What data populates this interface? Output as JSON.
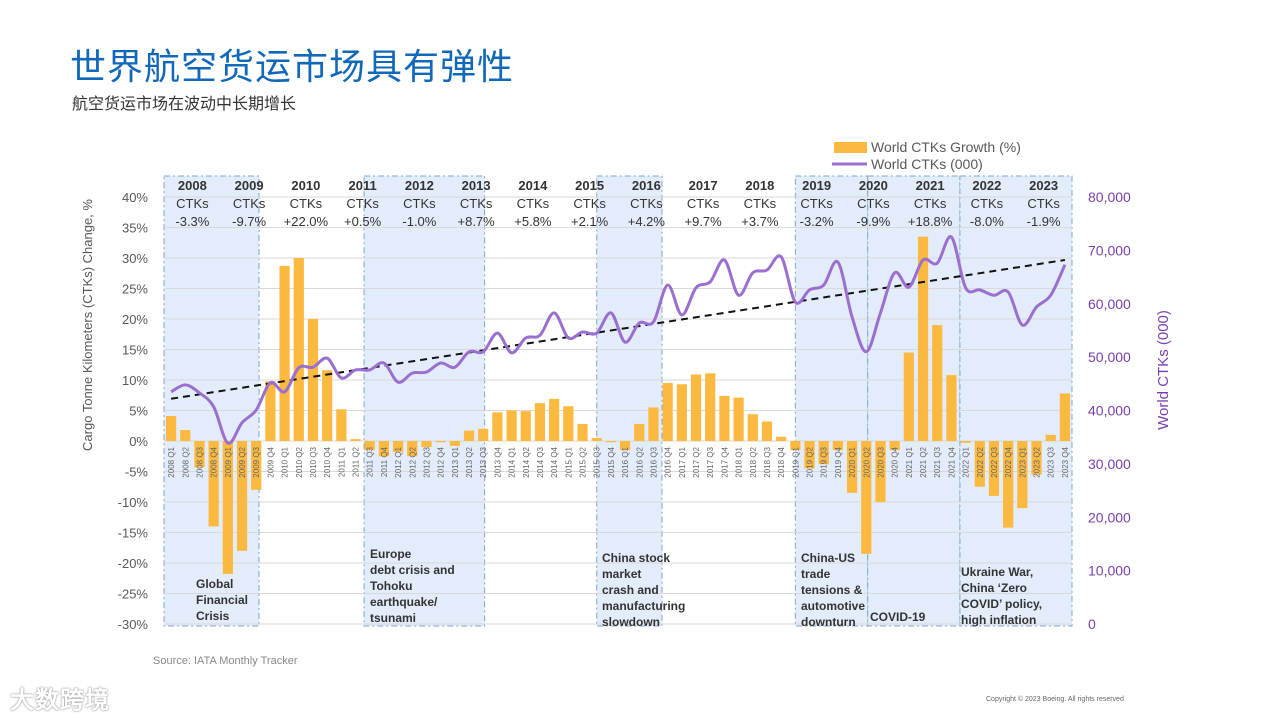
{
  "header": {
    "title": "世界航空货运市场具有弹性",
    "subtitle": "航空货运市场在波动中长期增长"
  },
  "footer": {
    "source": "Source: IATA Monthly Tracker",
    "copyright": "Copyright © 2023 Boeing. All rights reserved",
    "watermark": "1OO 大数跨境"
  },
  "colors": {
    "bar": "#fbb940",
    "line": "#9a6fcf",
    "trend": "#111111",
    "shade": "#e3ecfa",
    "shade_border": "#7ea7cc",
    "right_axis": "#7a3fae"
  },
  "chart_data": {
    "type": "bar+line",
    "legend": [
      "World CTKs Growth (%)",
      "World CTKs (000)"
    ],
    "legend_position": "top-right",
    "ylabel": "Cargo Tonne Kilometers (CTKs) Change, %",
    "y2label": "World CTKs (000)",
    "ylim": [
      -30,
      40
    ],
    "y2lim": [
      0,
      80000
    ],
    "yticks": [
      "-30%",
      "-25%",
      "-20%",
      "-15%",
      "-10%",
      "-5%",
      "0%",
      "5%",
      "10%",
      "15%",
      "20%",
      "25%",
      "30%",
      "35%",
      "40%"
    ],
    "y2ticks": [
      "0",
      "10,000",
      "20,000",
      "30,000",
      "40,000",
      "50,000",
      "60,000",
      "70,000",
      "80,000"
    ],
    "grid": true,
    "categories": [
      "2008 Q1",
      "2008 Q2",
      "2008 Q3",
      "2008 Q4",
      "2009 Q1",
      "2009 Q2",
      "2009 Q3",
      "2009 Q4",
      "2010 Q1",
      "2010 Q2",
      "2010 Q3",
      "2010 Q4",
      "2011 Q1",
      "2011 Q2",
      "2011 Q3",
      "2011 Q4",
      "2012 Q1",
      "2012 Q2",
      "2012 Q3",
      "2012 Q4",
      "2013 Q1",
      "2013 Q2",
      "2013 Q3",
      "2013 Q4",
      "2014 Q1",
      "2014 Q2",
      "2014 Q3",
      "2014 Q4",
      "2015 Q1",
      "2015 Q2",
      "2015 Q3",
      "2015 Q4",
      "2016 Q1",
      "2016 Q2",
      "2016 Q3",
      "2016 Q4",
      "2017 Q1",
      "2017 Q2",
      "2017 Q3",
      "2017 Q4",
      "2018 Q1",
      "2018 Q2",
      "2018 Q3",
      "2018 Q4",
      "2019 Q1",
      "2019 Q2",
      "2019 Q3",
      "2019 Q4",
      "2020 Q1",
      "2020 Q2",
      "2020 Q3",
      "2020 Q4",
      "2021 Q1",
      "2021 Q2",
      "2021 Q3",
      "2021 Q4",
      "2022 Q1",
      "2022 Q2",
      "2022 Q3",
      "2022 Q4",
      "2023 Q1",
      "2023 Q2",
      "2023 Q3",
      "2023 Q4"
    ],
    "series": [
      {
        "name": "World CTKs Growth (%)",
        "type": "bar",
        "values": [
          4.1,
          1.8,
          -4.3,
          -14,
          -21.8,
          -18,
          -8,
          9.8,
          28.7,
          30,
          20,
          11.6,
          5.2,
          0.3,
          -1.5,
          -2.5,
          -1.8,
          -2.5,
          -1,
          -0.2,
          -0.8,
          1.7,
          2,
          4.7,
          5,
          4.9,
          6.2,
          6.9,
          5.7,
          2.8,
          0.5,
          -0.2,
          -1.5,
          2.8,
          5.5,
          9.5,
          9.3,
          10.9,
          11.1,
          7.4,
          7.1,
          4.4,
          3.2,
          0.7,
          -1.5,
          -4.5,
          -3.8,
          -1.5,
          -8.5,
          -18.5,
          -10,
          -1.5,
          14.5,
          33.5,
          19,
          10.8,
          -0.3,
          -7.5,
          -9,
          -14.2,
          -11,
          -5.5,
          1,
          7.8
        ]
      },
      {
        "name": "World CTKs (000)",
        "type": "line",
        "values": [
          43500,
          44800,
          43300,
          40700,
          33900,
          37700,
          40100,
          45200,
          43500,
          48000,
          48100,
          49800,
          46100,
          47600,
          47600,
          48900,
          45300,
          47000,
          47200,
          48900,
          48100,
          51000,
          51000,
          54500,
          50800,
          53600,
          54100,
          58300,
          53600,
          54700,
          54500,
          58300,
          52800,
          56400,
          56600,
          63500,
          57900,
          63000,
          64100,
          68200,
          61600,
          65800,
          66300,
          68800,
          60300,
          62600,
          63500,
          67800,
          57500,
          51000,
          58300,
          65800,
          63100,
          68200,
          67600,
          72500,
          63000,
          62600,
          61600,
          62200,
          56000,
          59400,
          61600,
          67300
        ]
      },
      {
        "name": "Trend",
        "type": "dashed-line",
        "start": 42200,
        "end": 68200
      }
    ],
    "year_labels": [
      {
        "year": "2008",
        "label": "CTKs",
        "value": "-3.3%"
      },
      {
        "year": "2009",
        "label": "CTKs",
        "value": "-9.7%"
      },
      {
        "year": "2010",
        "label": "CTKs",
        "value": "+22.0%"
      },
      {
        "year": "2011",
        "label": "CTKs",
        "value": "+0.5%"
      },
      {
        "year": "2012",
        "label": "CTKs",
        "value": "-1.0%"
      },
      {
        "year": "2013",
        "label": "CTKs",
        "value": "+8.7%"
      },
      {
        "year": "2014",
        "label": "CTKs",
        "value": "+5.8%"
      },
      {
        "year": "2015",
        "label": "CTKs",
        "value": "+2.1%"
      },
      {
        "year": "2016",
        "label": "CTKs",
        "value": "+4.2%"
      },
      {
        "year": "2017",
        "label": "CTKs",
        "value": "+9.7%"
      },
      {
        "year": "2018",
        "label": "CTKs",
        "value": "+3.7%"
      },
      {
        "year": "2019",
        "label": "CTKs",
        "value": "-3.2%"
      },
      {
        "year": "2020",
        "label": "CTKs",
        "value": "-9.9%"
      },
      {
        "year": "2021",
        "label": "CTKs",
        "value": "+18.8%"
      },
      {
        "year": "2022",
        "label": "CTKs",
        "value": "-8.0%"
      },
      {
        "year": "2023",
        "label": "CTKs",
        "value": "-1.9%"
      }
    ],
    "shaded_periods": [
      {
        "from_quarter": 0,
        "to_quarter": 6.7,
        "lines": [
          "Global",
          "Financial",
          "Crisis"
        ]
      },
      {
        "from_quarter": 14.1,
        "to_quarter": 22.6,
        "lines": [
          "Europe",
          "debt crisis and",
          "Tohoku",
          "earthquake/",
          "tsunami"
        ]
      },
      {
        "from_quarter": 30.5,
        "to_quarter": 35.1,
        "lines": [
          "China stock",
          "market",
          "crash and",
          "manufacturing",
          "slowdown"
        ]
      },
      {
        "from_quarter": 44.5,
        "to_quarter": 49.6,
        "lines": [
          "China-US",
          "trade",
          "tensions &",
          "automotive",
          "downturn"
        ]
      },
      {
        "from_quarter": 49.6,
        "to_quarter": 56.1,
        "lines": [
          "COVID-19"
        ]
      },
      {
        "from_quarter": 56.1,
        "to_quarter": 64,
        "lines": [
          "Ukraine War,",
          "China ‘Zero",
          "COVID’ policy,",
          "high inflation"
        ]
      }
    ]
  }
}
